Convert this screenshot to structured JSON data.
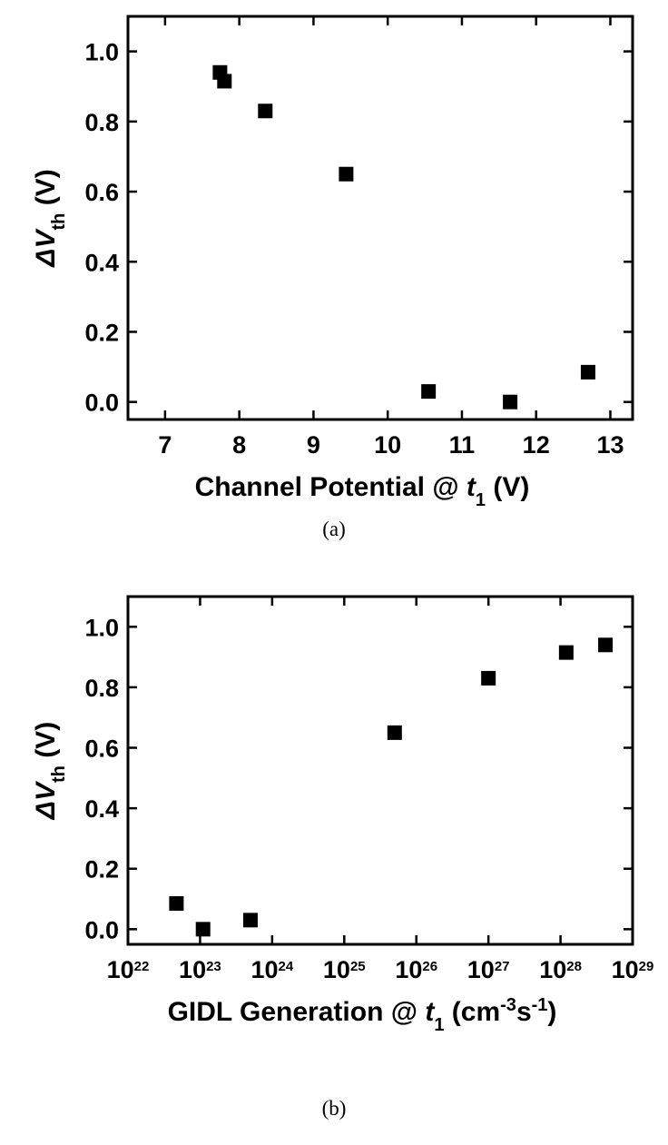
{
  "chart_data": [
    {
      "type": "scatter",
      "caption": "(a)",
      "xlabel": [
        {
          "text": "Channel Potential @ ",
          "style": "normal"
        },
        {
          "text": "t",
          "style": "italic"
        },
        {
          "text": "1",
          "style": "sub"
        },
        {
          "text": " (V)",
          "style": "normal"
        }
      ],
      "ylabel": [
        {
          "text": "ΔV",
          "style": "italic"
        },
        {
          "text": "th",
          "style": "sub"
        },
        {
          "text": " (V)",
          "style": "normal"
        }
      ],
      "x": [
        7.74,
        7.8,
        8.35,
        9.44,
        10.55,
        11.65,
        12.7
      ],
      "values": [
        0.94,
        0.915,
        0.83,
        0.65,
        0.03,
        0.0,
        0.085
      ],
      "color": "#000000",
      "xscale": "linear",
      "xlim": [
        6.5,
        13.3
      ],
      "xticks": [
        7,
        8,
        9,
        10,
        11,
        12,
        13
      ],
      "ylim": [
        -0.05,
        1.1
      ],
      "yticks": [
        {
          "value": 0,
          "label": "0.0"
        },
        0.2,
        0.4,
        0.6,
        0.8,
        {
          "value": 1,
          "label": "1.0"
        }
      ]
    },
    {
      "type": "scatter",
      "caption": "(b)",
      "xlabel": [
        {
          "text": "GIDL Generation @ ",
          "style": "normal"
        },
        {
          "text": "t",
          "style": "italic"
        },
        {
          "text": "1",
          "style": "sub"
        },
        {
          "text": " (cm",
          "style": "normal"
        },
        {
          "text": "-3",
          "style": "sup"
        },
        {
          "text": "s",
          "style": "normal"
        },
        {
          "text": "-1",
          "style": "sup"
        },
        {
          "text": ")",
          "style": "normal"
        }
      ],
      "ylabel": [
        {
          "text": "ΔV",
          "style": "italic"
        },
        {
          "text": "th",
          "style": "sub"
        },
        {
          "text": " (V)",
          "style": "normal"
        }
      ],
      "x": [
        4.7e+22,
        1.1e+23,
        5e+23,
        5e+25,
        1e+27,
        1.2e+28,
        4.2e+28
      ],
      "values": [
        0.085,
        0.0,
        0.03,
        0.65,
        0.83,
        0.915,
        0.94
      ],
      "color": "#000000",
      "xscale": "log",
      "xlim": [
        1e+22,
        1e+29
      ],
      "xticks": [
        {
          "value": 1e+22,
          "label": "10",
          "sup": "22"
        },
        {
          "value": 1e+23,
          "label": "10",
          "sup": "23"
        },
        {
          "value": 1e+24,
          "label": "10",
          "sup": "24"
        },
        {
          "value": 1e+25,
          "label": "10",
          "sup": "25"
        },
        {
          "value": 1e+26,
          "label": "10",
          "sup": "26"
        },
        {
          "value": 1e+27,
          "label": "10",
          "sup": "27"
        },
        {
          "value": 1e+28,
          "label": "10",
          "sup": "28"
        },
        {
          "value": 1e+29,
          "label": "10",
          "sup": "29"
        }
      ],
      "ylim": [
        -0.05,
        1.1
      ],
      "yticks": [
        {
          "value": 0,
          "label": "0.0"
        },
        0.2,
        0.4,
        0.6,
        0.8,
        {
          "value": 1,
          "label": "1.0"
        }
      ]
    }
  ]
}
